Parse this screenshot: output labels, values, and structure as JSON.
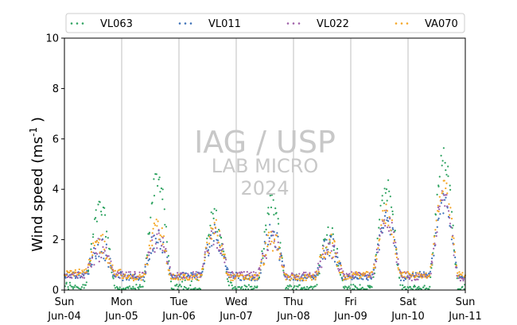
{
  "chart_data": {
    "type": "scatter",
    "ylabel": "Wind speed (ms⁻¹ )",
    "ylim": [
      0,
      10
    ],
    "y_ticks": [
      "0",
      "2",
      "4",
      "6",
      "8",
      "10"
    ],
    "x_range_days": [
      "2024-06-04",
      "2024-06-11"
    ],
    "x_ticks": [
      {
        "day": "Sun",
        "date": "Jun-04"
      },
      {
        "day": "Mon",
        "date": "Jun-05"
      },
      {
        "day": "Tue",
        "date": "Jun-06"
      },
      {
        "day": "Wed",
        "date": "Jun-07"
      },
      {
        "day": "Thu",
        "date": "Jun-08"
      },
      {
        "day": "Fri",
        "date": "Jun-09"
      },
      {
        "day": "Sat",
        "date": "Jun-10"
      },
      {
        "day": "Sun",
        "date": "Jun-11"
      }
    ],
    "grid": "vertical at day boundaries",
    "legend_placement": "top",
    "watermark": [
      "IAG / USP",
      "LAB MICRO",
      "2024"
    ],
    "series": [
      {
        "name": "VL063",
        "color": "#2ca25f",
        "daily_profile": [
          {
            "day": "2024-06-04",
            "night": 0.2,
            "peak": 3.2
          },
          {
            "day": "2024-06-05",
            "night": 0.1,
            "peak": 4.5
          },
          {
            "day": "2024-06-06",
            "night": 0.3,
            "peak": 2.9
          },
          {
            "day": "2024-06-07",
            "night": 0.1,
            "peak": 3.4
          },
          {
            "day": "2024-06-08",
            "night": 0.1,
            "peak": 2.3
          },
          {
            "day": "2024-06-09",
            "night": 0.1,
            "peak": 4.0
          },
          {
            "day": "2024-06-10",
            "night": 0.1,
            "peak": 5.2
          }
        ]
      },
      {
        "name": "VL011",
        "color": "#3b6fb6",
        "daily_profile": [
          {
            "day": "2024-06-04",
            "night": 0.6,
            "peak": 1.8
          },
          {
            "day": "2024-06-05",
            "night": 0.5,
            "peak": 2.2
          },
          {
            "day": "2024-06-06",
            "night": 0.6,
            "peak": 2.2
          },
          {
            "day": "2024-06-07",
            "night": 0.5,
            "peak": 2.2
          },
          {
            "day": "2024-06-08",
            "night": 0.5,
            "peak": 1.8
          },
          {
            "day": "2024-06-09",
            "night": 0.5,
            "peak": 2.8
          },
          {
            "day": "2024-06-10",
            "night": 0.6,
            "peak": 3.4
          }
        ]
      },
      {
        "name": "VL022",
        "color": "#9e5fa8",
        "daily_profile": [
          {
            "day": "2024-06-04",
            "night": 0.6,
            "peak": 1.6
          },
          {
            "day": "2024-06-05",
            "night": 0.6,
            "peak": 2.0
          },
          {
            "day": "2024-06-06",
            "night": 0.6,
            "peak": 2.2
          },
          {
            "day": "2024-06-07",
            "night": 0.6,
            "peak": 2.0
          },
          {
            "day": "2024-06-08",
            "night": 0.6,
            "peak": 1.6
          },
          {
            "day": "2024-06-09",
            "night": 0.6,
            "peak": 2.8
          },
          {
            "day": "2024-06-10",
            "night": 0.5,
            "peak": 3.6
          }
        ]
      },
      {
        "name": "VA070",
        "color": "#f5a623",
        "daily_profile": [
          {
            "day": "2024-06-04",
            "night": 0.7,
            "peak": 1.9
          },
          {
            "day": "2024-06-05",
            "night": 0.5,
            "peak": 2.4
          },
          {
            "day": "2024-06-06",
            "night": 0.5,
            "peak": 2.4
          },
          {
            "day": "2024-06-07",
            "night": 0.5,
            "peak": 2.0
          },
          {
            "day": "2024-06-08",
            "night": 0.5,
            "peak": 1.8
          },
          {
            "day": "2024-06-09",
            "night": 0.6,
            "peak": 3.0
          },
          {
            "day": "2024-06-10",
            "night": 0.6,
            "peak": 4.0
          }
        ]
      }
    ]
  }
}
